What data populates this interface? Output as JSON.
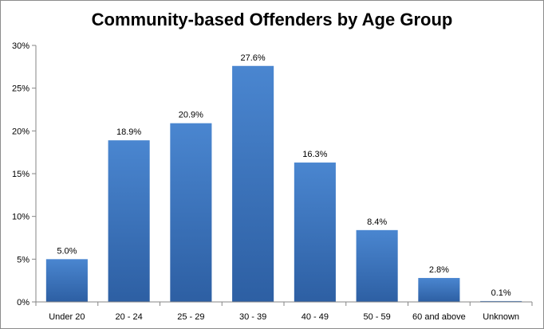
{
  "chart_data": {
    "type": "bar",
    "title": "Community-based Offenders by Age Group",
    "categories": [
      "Under 20",
      "20 - 24",
      "25 - 29",
      "30 - 39",
      "40 - 49",
      "50 - 59",
      "60 and above",
      "Unknown"
    ],
    "values": [
      5.0,
      18.9,
      20.9,
      27.6,
      16.3,
      8.4,
      2.8,
      0.1
    ],
    "data_labels": [
      "5.0%",
      "18.9%",
      "20.9%",
      "27.6%",
      "16.3%",
      "8.4%",
      "2.8%",
      "0.1%"
    ],
    "y_ticks": [
      "0%",
      "5%",
      "10%",
      "15%",
      "20%",
      "25%",
      "30%"
    ],
    "ylim": [
      0,
      30
    ],
    "xlabel": "",
    "ylabel": "",
    "grid": false,
    "legend": "none",
    "colors": {
      "bar_top": "#4a86d0",
      "bar_bottom": "#2d5fa3",
      "axis": "#868686"
    }
  }
}
